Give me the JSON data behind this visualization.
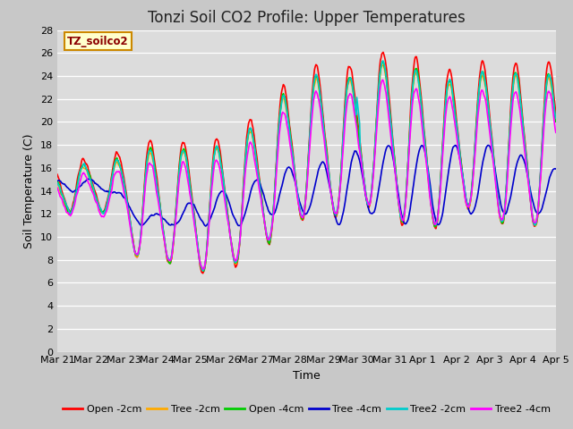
{
  "title": "Tonzi Soil CO2 Profile: Upper Temperatures",
  "xlabel": "Time",
  "ylabel": "Soil Temperature (C)",
  "ylim": [
    0,
    28
  ],
  "yticks": [
    0,
    2,
    4,
    6,
    8,
    10,
    12,
    14,
    16,
    18,
    20,
    22,
    24,
    26,
    28
  ],
  "xtick_labels": [
    "Mar 21",
    "Mar 22",
    "Mar 23",
    "Mar 24",
    "Mar 25",
    "Mar 26",
    "Mar 27",
    "Mar 28",
    "Mar 29",
    "Mar 30",
    "Mar 31",
    "Apr 1",
    "Apr 2",
    "Apr 3",
    "Apr 4",
    "Apr 5"
  ],
  "legend_labels": [
    "Open -2cm",
    "Tree -2cm",
    "Open -4cm",
    "Tree -4cm",
    "Tree2 -2cm",
    "Tree2 -4cm"
  ],
  "legend_colors": [
    "#ff0000",
    "#ffaa00",
    "#00cc00",
    "#0000cc",
    "#00cccc",
    "#ff00ff"
  ],
  "annotation_text": "TZ_soilco2",
  "annotation_color": "#8B0000",
  "annotation_bg": "#ffffcc",
  "title_fontsize": 12,
  "axis_fontsize": 9,
  "tick_fontsize": 8
}
